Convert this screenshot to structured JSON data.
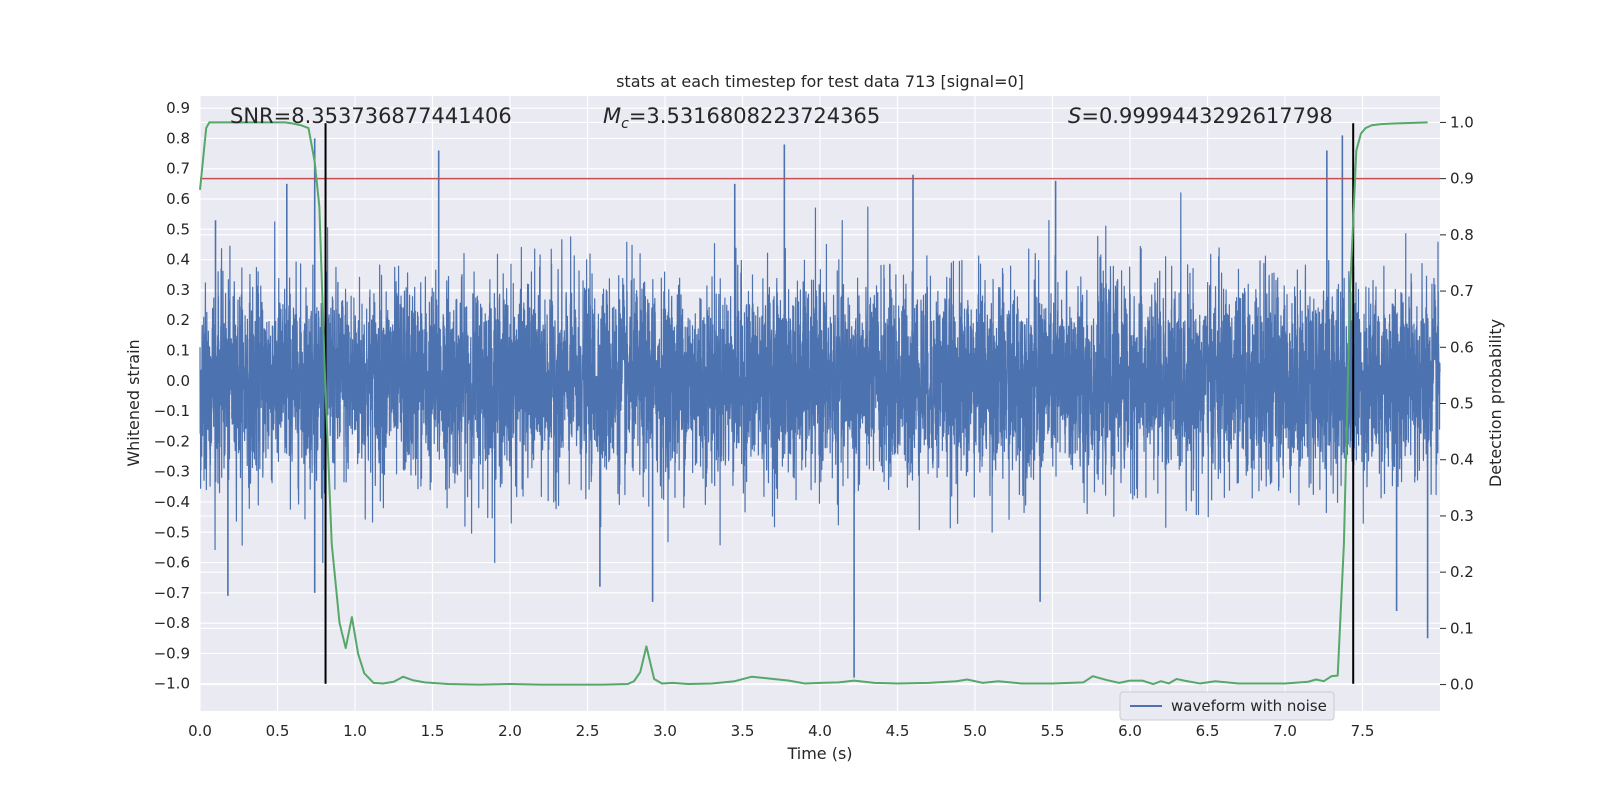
{
  "chart_data": {
    "type": "line",
    "title": "stats at each timestep for test data 713 [signal=0]",
    "xlabel": "Time (s)",
    "ylabel_left": "Whitened strain",
    "ylabel_right": "Detection probability",
    "xlim": [
      0.0,
      8.0
    ],
    "ylim_left": [
      -1.09,
      0.94
    ],
    "ylim_right": [
      -0.047,
      1.047
    ],
    "x_ticks": [
      "0.0",
      "0.5",
      "1.0",
      "1.5",
      "2.0",
      "2.5",
      "3.0",
      "3.5",
      "4.0",
      "4.5",
      "5.0",
      "5.5",
      "6.0",
      "6.5",
      "7.0",
      "7.5"
    ],
    "y_ticks_left": [
      "−1.0",
      "−0.9",
      "−0.8",
      "−0.7",
      "−0.6",
      "−0.5",
      "−0.4",
      "−0.3",
      "−0.2",
      "−0.1",
      "0.0",
      "0.1",
      "0.2",
      "0.3",
      "0.4",
      "0.5",
      "0.6",
      "0.7",
      "0.8",
      "0.9"
    ],
    "y_ticks_right": [
      "0.0",
      "0.1",
      "0.2",
      "0.3",
      "0.4",
      "0.5",
      "0.6",
      "0.7",
      "0.8",
      "0.9",
      "1.0"
    ],
    "grid": true,
    "legend_position": "lower-right",
    "annotations": {
      "snr": "SNR=8.353736877441406",
      "mc_symbol": "M",
      "mc_sub": "c",
      "mc_value": "=3.5316808223724365",
      "s_symbol": "S",
      "s_value": "=0.9999443292617798"
    },
    "threshold": {
      "value": 0.9,
      "axis": "right",
      "color": "#c44e52"
    },
    "vlines": {
      "x": [
        0.81,
        7.44
      ],
      "ymin": -1.0,
      "ymax": 0.85,
      "color": "#000000"
    },
    "series": [
      {
        "name": "waveform with noise",
        "axis": "left",
        "color": "#4c72b0",
        "kind": "noise",
        "band_std": 0.16,
        "notable_peaks": [
          {
            "x": 0.1,
            "y": 0.53
          },
          {
            "x": 0.18,
            "y": -0.71
          },
          {
            "x": 0.56,
            "y": 0.65
          },
          {
            "x": 0.74,
            "y": 0.8
          },
          {
            "x": 0.74,
            "y": -0.7
          },
          {
            "x": 1.54,
            "y": 0.76
          },
          {
            "x": 2.58,
            "y": -0.68
          },
          {
            "x": 2.92,
            "y": -0.73
          },
          {
            "x": 3.45,
            "y": 0.65
          },
          {
            "x": 3.77,
            "y": 0.78
          },
          {
            "x": 4.22,
            "y": -0.98
          },
          {
            "x": 4.6,
            "y": 0.68
          },
          {
            "x": 5.42,
            "y": -0.73
          },
          {
            "x": 5.52,
            "y": 0.66
          },
          {
            "x": 7.27,
            "y": 0.76
          },
          {
            "x": 7.37,
            "y": 0.81
          },
          {
            "x": 7.72,
            "y": -0.76
          },
          {
            "x": 7.92,
            "y": -0.85
          }
        ]
      },
      {
        "name": "",
        "axis": "right",
        "color": "#55a868",
        "kind": "line",
        "x": [
          0.0,
          0.04,
          0.06,
          0.12,
          0.2,
          0.3,
          0.4,
          0.5,
          0.55,
          0.6,
          0.65,
          0.7,
          0.74,
          0.77,
          0.81,
          0.85,
          0.9,
          0.94,
          0.98,
          1.02,
          1.06,
          1.12,
          1.18,
          1.25,
          1.31,
          1.37,
          1.45,
          1.6,
          1.8,
          2.0,
          2.2,
          2.4,
          2.6,
          2.76,
          2.8,
          2.84,
          2.88,
          2.93,
          2.98,
          3.05,
          3.15,
          3.3,
          3.45,
          3.56,
          3.7,
          3.8,
          3.9,
          4.0,
          4.12,
          4.22,
          4.35,
          4.5,
          4.7,
          4.88,
          4.95,
          5.05,
          5.15,
          5.3,
          5.5,
          5.7,
          5.76,
          5.85,
          5.93,
          6.0,
          6.08,
          6.15,
          6.2,
          6.25,
          6.3,
          6.35,
          6.45,
          6.55,
          6.7,
          6.85,
          7.0,
          7.15,
          7.2,
          7.25,
          7.3,
          7.34,
          7.38,
          7.42,
          7.46,
          7.49,
          7.52,
          7.56,
          7.62,
          7.7,
          7.8,
          7.92
        ],
        "y": [
          0.88,
          0.99,
          1.0,
          1.0,
          1.0,
          1.0,
          1.0,
          1.0,
          1.0,
          0.998,
          0.995,
          0.99,
          0.93,
          0.85,
          0.52,
          0.25,
          0.11,
          0.065,
          0.12,
          0.055,
          0.02,
          0.003,
          0.002,
          0.005,
          0.014,
          0.008,
          0.004,
          0.001,
          0.0,
          0.001,
          0.0,
          0.0,
          0.0,
          0.001,
          0.006,
          0.022,
          0.068,
          0.01,
          0.002,
          0.003,
          0.001,
          0.002,
          0.006,
          0.014,
          0.01,
          0.007,
          0.002,
          0.003,
          0.004,
          0.007,
          0.003,
          0.002,
          0.003,
          0.006,
          0.009,
          0.003,
          0.006,
          0.002,
          0.002,
          0.004,
          0.015,
          0.008,
          0.003,
          0.007,
          0.007,
          0.001,
          0.006,
          0.002,
          0.01,
          0.007,
          0.002,
          0.006,
          0.002,
          0.002,
          0.002,
          0.005,
          0.009,
          0.006,
          0.015,
          0.016,
          0.25,
          0.7,
          0.95,
          0.98,
          0.99,
          0.995,
          0.997,
          0.998,
          0.999,
          1.0
        ]
      }
    ]
  }
}
